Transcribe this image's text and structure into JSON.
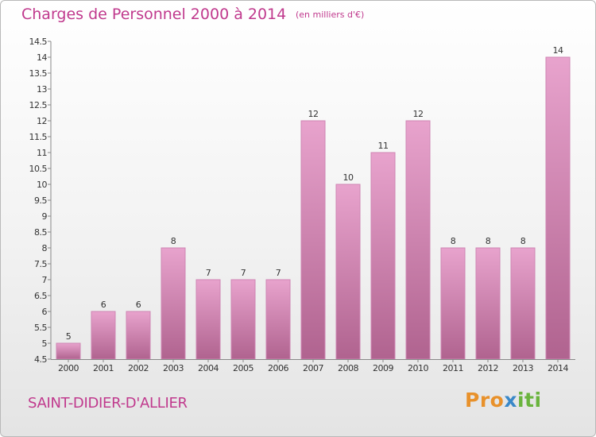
{
  "header": {
    "title": "Charges de Personnel 2000 à 2014",
    "subtitle": "(en milliers d'€)"
  },
  "footer": {
    "commune": "SAINT-DIDIER-D'ALLIER",
    "logo_part1": "Pro",
    "logo_part2": "x",
    "logo_part3": "iti"
  },
  "colors": {
    "accent": "#c0398d",
    "bar_top": "#e8a3cd",
    "bar_bottom": "#b0638f",
    "bar_border": "#cf86b4"
  },
  "chart_data": {
    "type": "bar",
    "title": "Charges de Personnel 2000 à 2014",
    "subtitle": "(en milliers d'€)",
    "categories": [
      "2000",
      "2001",
      "2002",
      "2003",
      "2004",
      "2005",
      "2006",
      "2007",
      "2008",
      "2009",
      "2010",
      "2011",
      "2012",
      "2013",
      "2014"
    ],
    "values": [
      5,
      6,
      6,
      8,
      7,
      7,
      7,
      12,
      10,
      11,
      12,
      8,
      8,
      8,
      14
    ],
    "ylim": [
      4.5,
      14.5
    ],
    "yticks": [
      4.5,
      5,
      5.5,
      6,
      6.5,
      7,
      7.5,
      8,
      8.5,
      9,
      9.5,
      10,
      10.5,
      11,
      11.5,
      12,
      12.5,
      13,
      13.5,
      14,
      14.5
    ],
    "grid": false,
    "data_labels": true
  }
}
